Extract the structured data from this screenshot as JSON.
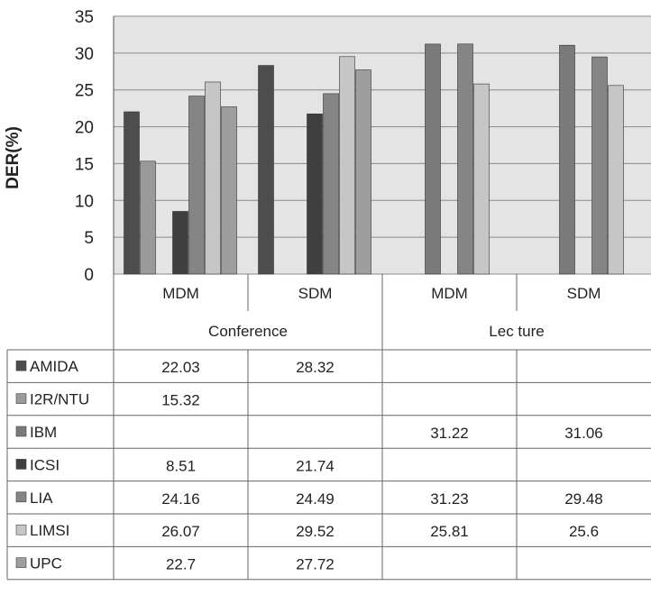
{
  "chart_data": {
    "type": "bar",
    "title": "",
    "ylabel": "DER(%)",
    "xlabel": "",
    "ylim": [
      0,
      35
    ],
    "yticks": [
      "0",
      "5",
      "10",
      "15",
      "20",
      "25",
      "30",
      "35"
    ],
    "grid": true,
    "legend": "table-left",
    "groups": [
      {
        "label": "Conference",
        "categories": [
          "MDM",
          "SDM"
        ]
      },
      {
        "label": "Lec ture",
        "categories": [
          "MDM",
          "SDM"
        ]
      }
    ],
    "categories": [
      "MDM",
      "SDM",
      "MDM",
      "SDM"
    ],
    "series": [
      {
        "name": "AMIDA",
        "color": "#4d4d4d",
        "values": [
          22.03,
          28.32,
          null,
          null
        ],
        "labels": [
          "22.03",
          "28.32",
          "",
          ""
        ]
      },
      {
        "name": "I2R/NTU",
        "color": "#9a9a9a",
        "values": [
          15.32,
          null,
          null,
          null
        ],
        "labels": [
          "15.32",
          "",
          "",
          ""
        ]
      },
      {
        "name": "IBM",
        "color": "#7a7a7a",
        "values": [
          null,
          null,
          31.22,
          31.06
        ],
        "labels": [
          "",
          "",
          "31.22",
          "31.06"
        ]
      },
      {
        "name": "ICSI",
        "color": "#3f3f3f",
        "values": [
          8.51,
          21.74,
          null,
          null
        ],
        "labels": [
          "8.51",
          "21.74",
          "",
          ""
        ]
      },
      {
        "name": "LIA",
        "color": "#858585",
        "values": [
          24.16,
          24.49,
          31.23,
          29.48
        ],
        "labels": [
          "24.16",
          "24.49",
          "31.23",
          "29.48"
        ]
      },
      {
        "name": "LIMSI",
        "color": "#c6c6c6",
        "values": [
          26.07,
          29.52,
          25.81,
          25.6
        ],
        "labels": [
          "26.07",
          "29.52",
          "25.81",
          "25.6"
        ]
      },
      {
        "name": "UPC",
        "color": "#9e9e9e",
        "values": [
          22.7,
          27.72,
          null,
          null
        ],
        "labels": [
          "22.7",
          "27.72",
          "",
          ""
        ]
      }
    ],
    "plot_background": "#e4e4e4"
  }
}
